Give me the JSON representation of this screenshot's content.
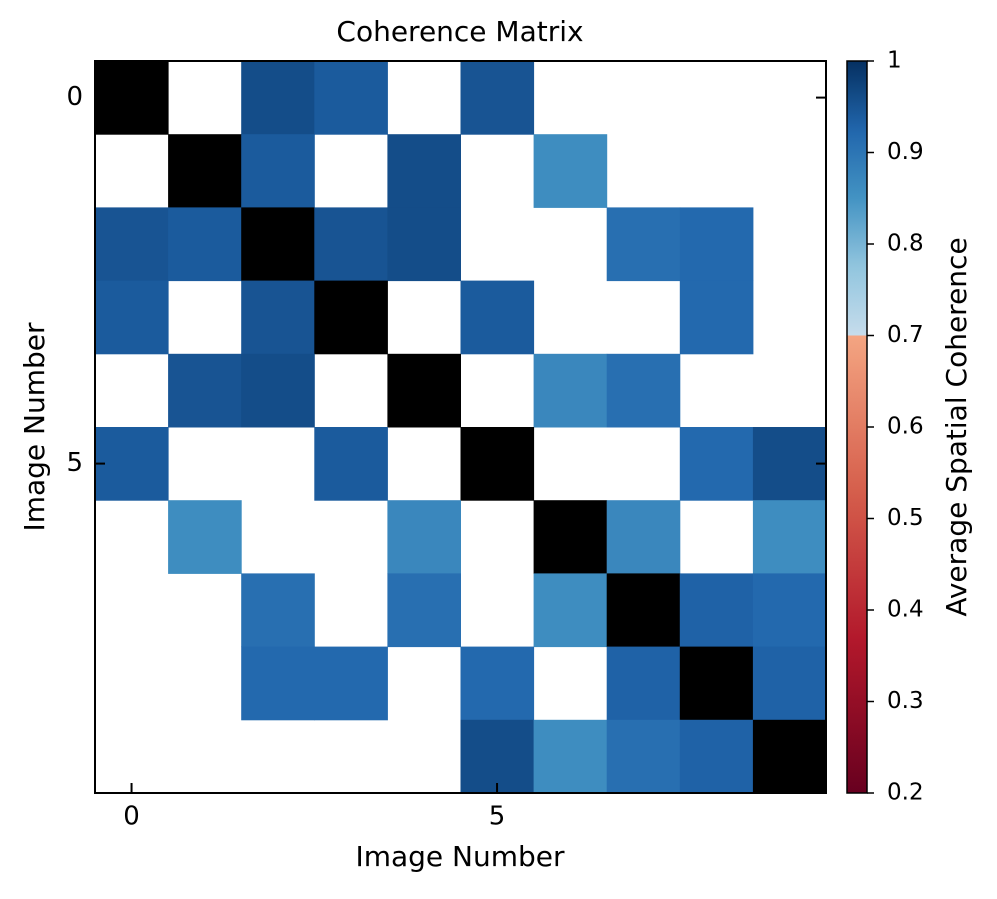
{
  "chart_data": {
    "type": "heatmap",
    "title": "Coherence Matrix",
    "x_label": "Image Number",
    "y_label": "Image Number",
    "colorbar_label": "Average Spatial Coherence",
    "xlim": [
      -0.5,
      9.5
    ],
    "ylim": [
      9.5,
      -0.5
    ],
    "xticks": [
      0,
      5
    ],
    "yticks": [
      0,
      5
    ],
    "clim": [
      0.2,
      1.0
    ],
    "cticks": [
      0.2,
      0.3,
      0.4,
      0.5,
      0.6,
      0.7,
      0.8,
      0.9,
      1.0
    ],
    "colormap": "RdBu",
    "color_break": 0.7,
    "missing_color": "#ffffff",
    "diagonal_color": "#000000",
    "matrix": [
      [
        null,
        null,
        0.96,
        0.94,
        null,
        0.95,
        null,
        null,
        null,
        null
      ],
      [
        null,
        null,
        0.94,
        null,
        0.96,
        null,
        0.86,
        null,
        null,
        null
      ],
      [
        0.95,
        0.94,
        null,
        0.95,
        0.96,
        null,
        null,
        0.91,
        0.92,
        null
      ],
      [
        0.94,
        null,
        0.95,
        null,
        null,
        0.94,
        null,
        null,
        0.92,
        null
      ],
      [
        null,
        0.95,
        0.96,
        null,
        null,
        null,
        0.87,
        0.91,
        null,
        null
      ],
      [
        0.94,
        null,
        null,
        0.94,
        null,
        null,
        null,
        null,
        0.92,
        0.96
      ],
      [
        null,
        0.86,
        null,
        null,
        0.87,
        null,
        null,
        0.87,
        null,
        0.86
      ],
      [
        null,
        null,
        0.91,
        null,
        0.91,
        null,
        0.86,
        null,
        0.93,
        0.92
      ],
      [
        null,
        null,
        0.92,
        0.92,
        null,
        0.92,
        null,
        0.93,
        null,
        0.93
      ],
      [
        null,
        null,
        null,
        null,
        null,
        0.96,
        0.86,
        0.91,
        0.93,
        null
      ]
    ]
  }
}
